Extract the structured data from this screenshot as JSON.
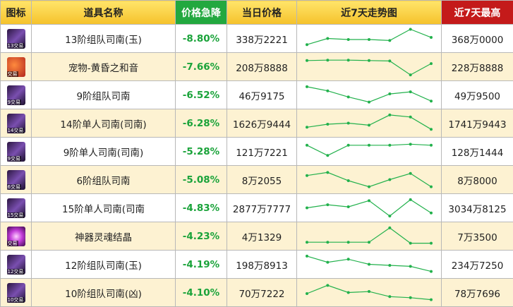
{
  "header": {
    "icon": "图标",
    "name": "道具名称",
    "drop": "价格急降",
    "price": "当日价格",
    "trend": "近7天走势图",
    "high": "近7天最高"
  },
  "colors": {
    "drop_text": "#1aa33a",
    "line": "#22b14c",
    "header_yellow": "#f5c22b",
    "header_green": "#22a83f",
    "header_red": "#c41a1a",
    "alt_row": "#fdf2d2"
  },
  "rows": [
    {
      "icon": "weapon-icon",
      "icon_label": "13交易",
      "name": "13阶组队司南(玉)",
      "drop": "-8.80%",
      "price": "338万2221",
      "high": "368万0000",
      "trend": [
        80,
        50,
        55,
        55,
        60,
        5,
        45
      ]
    },
    {
      "icon": "pet-icon",
      "icon_label": "交易",
      "name": "宠物-黄昏之和音",
      "drop": "-7.66%",
      "price": "208万8888",
      "high": "228万8888",
      "trend": [
        20,
        18,
        18,
        20,
        22,
        90,
        35
      ]
    },
    {
      "icon": "weapon-icon",
      "icon_label": "9交易",
      "name": "9阶组队司南",
      "drop": "-6.52%",
      "price": "46万9175",
      "high": "49万9500",
      "trend": [
        10,
        30,
        60,
        85,
        45,
        35,
        80
      ]
    },
    {
      "icon": "weapon-icon",
      "icon_label": "14交易",
      "name": "14阶单人司南(司南)",
      "drop": "-6.28%",
      "price": "1626万9444",
      "high": "1741万9443",
      "trend": [
        70,
        55,
        50,
        60,
        10,
        20,
        80
      ]
    },
    {
      "icon": "weapon-icon",
      "icon_label": "9交易",
      "name": "9阶单人司南(司南)",
      "drop": "-5.28%",
      "price": "121万7221",
      "high": "128万1444",
      "trend": [
        20,
        70,
        20,
        20,
        20,
        15,
        20
      ]
    },
    {
      "icon": "weapon-icon",
      "icon_label": "6交易",
      "name": "6阶组队司南",
      "drop": "-5.08%",
      "price": "8万2055",
      "high": "8万8000",
      "trend": [
        30,
        15,
        55,
        85,
        50,
        20,
        85
      ]
    },
    {
      "icon": "weapon-icon",
      "icon_label": "15交易",
      "name": "15阶单人司南(司南",
      "drop": "-4.83%",
      "price": "2877万7777",
      "high": "3034万8125",
      "trend": [
        50,
        35,
        45,
        15,
        90,
        10,
        75
      ]
    },
    {
      "icon": "soul-icon",
      "icon_label": "交易",
      "name": "神器灵魂结晶",
      "drop": "-4.23%",
      "price": "4万1329",
      "high": "7万3500",
      "trend": [
        80,
        80,
        80,
        80,
        10,
        85,
        85
      ]
    },
    {
      "icon": "weapon-icon",
      "icon_label": "12交易",
      "name": "12阶组队司南(玉)",
      "drop": "-4.19%",
      "price": "198万8913",
      "high": "234万7250",
      "trend": [
        10,
        40,
        25,
        50,
        55,
        60,
        85
      ]
    },
    {
      "icon": "weapon-icon",
      "icon_label": "10交易",
      "name": "10阶组队司南(凶)",
      "drop": "-4.10%",
      "price": "70万7222",
      "high": "78万7696",
      "trend": [
        55,
        15,
        50,
        45,
        70,
        75,
        85
      ]
    }
  ]
}
